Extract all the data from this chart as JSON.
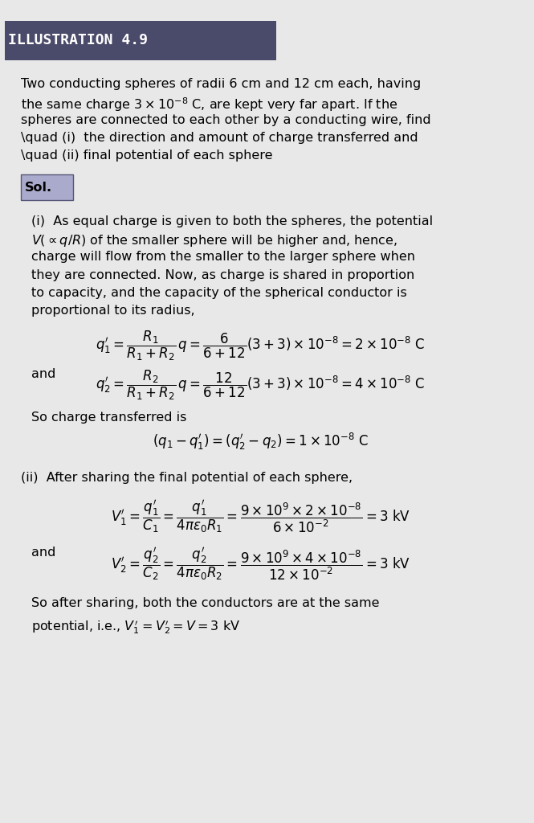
{
  "bg_color": "#e8e8e8",
  "title_box_color": "#4a4a6a",
  "title_text": "ILLUSTRATION 4.9",
  "title_text_color": "#ffffff",
  "title_fontsize": 13,
  "body_fontsize": 11.5,
  "math_fontsize": 11.5,
  "problem_text": [
    "Two conducting spheres of radii 6 cm and 12 cm each, having",
    "the same charge $3 \\times 10^{-8}$ C, are kept very far apart. If the",
    "spheres are connected to each other by a conducting wire, find",
    "\\quad (i)  the direction and amount of charge transferred and",
    "\\quad (ii) final potential of each sphere"
  ],
  "sol_text": "Sol.",
  "solution_lines": [
    "(i)  As equal charge is given to both the spheres, the potential",
    "$V(\\propto q/R)$ of the smaller sphere will be higher and, hence,",
    "charge will flow from the smaller to the larger sphere when",
    "they are connected. Now, as charge is shared in proportion",
    "to capacity, and the capacity of the spherical conductor is",
    "proportional to its radius,"
  ],
  "eq1_lhs": "$q_1' = \\dfrac{R_1}{R_1 + R_2}\\, q = \\dfrac{6}{6+12}(3+3) \\times 10^{-8} = 2 \\times 10^{-8}$ C",
  "eq2_prefix": "and",
  "eq2": "$q_2' = \\dfrac{R_2}{R_1 + R_2}\\, q = \\dfrac{12}{6+12}(3+3) \\times 10^{-8} = 4 \\times 10^{-8}$ C",
  "charge_transfer_intro": "So charge transferred is",
  "charge_transfer_eq": "$(q_1 - q_1') = (q_2' - q_2) = 1 \\times 10^{-8}$ C",
  "part2_intro": "(ii)  After sharing the final potential of each sphere,",
  "v1_eq": "$V_1' = \\dfrac{q_1'}{C_1} = \\dfrac{q_1'}{4\\pi\\varepsilon_0 R_1} = \\dfrac{9 \\times 10^9 \\times 2 \\times 10^{-8}}{6 \\times 10^{-2}} = 3$ kV",
  "v2_prefix": "and",
  "v2_eq": "$V_2' = \\dfrac{q_2'}{C_2} = \\dfrac{q_2'}{4\\pi\\varepsilon_0 R_2} = \\dfrac{9 \\times 10^9 \\times 4 \\times 10^{-8}}{12 \\times 10^{-2}} = 3$ kV",
  "conclusion_lines": [
    "So after sharing, both the conductors are at the same",
    "potential, i.e., $V_1' = V_2' = V = 3$ kV"
  ]
}
